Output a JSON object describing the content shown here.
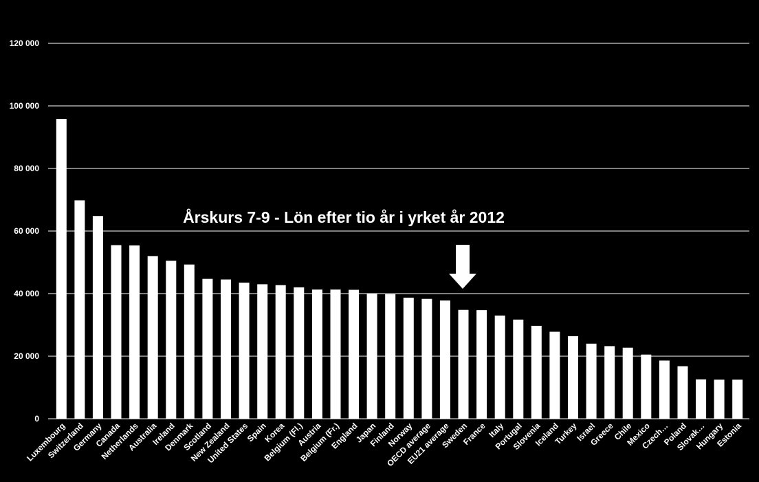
{
  "colors": {
    "background": "#000000",
    "bar": "#ffffff",
    "grid": "#ffffff",
    "text": "#ffffff",
    "arrow": "#ffffff"
  },
  "arrow": {
    "icon": "down-arrow-icon",
    "points_to": "Sweden"
  },
  "chart_data": {
    "type": "bar",
    "title": "Årskurs 7-9 - Lön efter tio år i yrket år 2012",
    "xlabel": "",
    "ylabel": "",
    "ylim": [
      0,
      120000
    ],
    "yticks": [
      0,
      20000,
      40000,
      60000,
      80000,
      100000,
      120000
    ],
    "ytick_labels": [
      "0",
      "20 000",
      "40 000",
      "60 000",
      "80 000",
      "100 000",
      "120 000"
    ],
    "grid": true,
    "legend": "none",
    "categories": [
      "Luxembourg",
      "Switzerland",
      "Germany",
      "Canada",
      "Netherlands",
      "Australia",
      "Ireland",
      "Denmark",
      "Scotland",
      "New Zealand",
      "United States",
      "Spain",
      "Korea",
      "Belgium (Fl.)",
      "Austria",
      "Belgium (Fr.)",
      "England",
      "Japan",
      "Finland",
      "Norway",
      "OECD average",
      "EU21 average",
      "Sweden",
      "France",
      "Italy",
      "Portugal",
      "Slovenia",
      "Iceland",
      "Turkey",
      "Israel",
      "Greece",
      "Chile",
      "Mexico",
      "Czech…",
      "Poland",
      "Slovak…",
      "Hungary",
      "Estonia"
    ],
    "values": [
      95800,
      69800,
      64800,
      55500,
      55400,
      52000,
      50500,
      49300,
      44700,
      44500,
      43500,
      43000,
      42700,
      42000,
      41300,
      41300,
      41200,
      40000,
      39800,
      38700,
      38300,
      37800,
      34800,
      34700,
      33000,
      31700,
      29700,
      27800,
      26400,
      24000,
      23200,
      22700,
      20500,
      18600,
      16800,
      12600,
      12500,
      12500
    ]
  }
}
